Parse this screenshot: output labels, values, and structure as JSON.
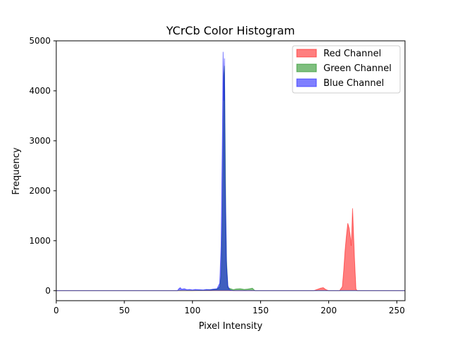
{
  "chart_data": {
    "type": "area",
    "title": "YCrCb Color Histogram",
    "xlabel": "Pixel Intensity",
    "ylabel": "Frequency",
    "xlim": [
      0,
      256
    ],
    "ylim": [
      -200,
      5000
    ],
    "xticks": [
      0,
      50,
      100,
      150,
      200,
      250
    ],
    "yticks": [
      0,
      1000,
      2000,
      3000,
      4000,
      5000
    ],
    "grid": false,
    "legend_position": "top-right",
    "series": [
      {
        "name": "Red Channel",
        "color": "#ff0000",
        "points": [
          [
            0,
            0
          ],
          [
            189,
            0
          ],
          [
            192,
            30
          ],
          [
            194,
            50
          ],
          [
            196,
            60
          ],
          [
            198,
            20
          ],
          [
            200,
            0
          ],
          [
            208,
            0
          ],
          [
            210,
            80
          ],
          [
            211,
            400
          ],
          [
            212,
            800
          ],
          [
            213,
            1100
          ],
          [
            214,
            1350
          ],
          [
            215,
            1250
          ],
          [
            216,
            1050
          ],
          [
            216.5,
            900
          ],
          [
            217,
            1200
          ],
          [
            217.5,
            1650
          ],
          [
            218,
            1300
          ],
          [
            219,
            600
          ],
          [
            220,
            30
          ],
          [
            221,
            0
          ],
          [
            256,
            0
          ]
        ]
      },
      {
        "name": "Green Channel",
        "color": "#008000",
        "points": [
          [
            0,
            0
          ],
          [
            100,
            0
          ],
          [
            110,
            10
          ],
          [
            118,
            30
          ],
          [
            120,
            80
          ],
          [
            121,
            300
          ],
          [
            122,
            1500
          ],
          [
            123,
            4300
          ],
          [
            123.5,
            4500
          ],
          [
            124,
            3000
          ],
          [
            124.5,
            1400
          ],
          [
            125,
            600
          ],
          [
            126,
            60
          ],
          [
            128,
            40
          ],
          [
            130,
            20
          ],
          [
            132,
            35
          ],
          [
            135,
            40
          ],
          [
            138,
            25
          ],
          [
            140,
            30
          ],
          [
            142,
            40
          ],
          [
            144,
            50
          ],
          [
            145,
            20
          ],
          [
            146,
            0
          ],
          [
            256,
            0
          ]
        ]
      },
      {
        "name": "Blue Channel",
        "color": "#0000ff",
        "points": [
          [
            0,
            0
          ],
          [
            89,
            0
          ],
          [
            90,
            40
          ],
          [
            91,
            60
          ],
          [
            92,
            30
          ],
          [
            94,
            40
          ],
          [
            96,
            20
          ],
          [
            98,
            25
          ],
          [
            100,
            15
          ],
          [
            102,
            25
          ],
          [
            105,
            20
          ],
          [
            108,
            15
          ],
          [
            110,
            25
          ],
          [
            113,
            20
          ],
          [
            115,
            30
          ],
          [
            118,
            40
          ],
          [
            120,
            150
          ],
          [
            121,
            900
          ],
          [
            122,
            3200
          ],
          [
            122.5,
            4780
          ],
          [
            123,
            3800
          ],
          [
            123.5,
            4650
          ],
          [
            124,
            2200
          ],
          [
            124.5,
            1400
          ],
          [
            125,
            500
          ],
          [
            126,
            100
          ],
          [
            127,
            30
          ],
          [
            128,
            10
          ],
          [
            130,
            0
          ],
          [
            256,
            0
          ]
        ]
      }
    ]
  }
}
